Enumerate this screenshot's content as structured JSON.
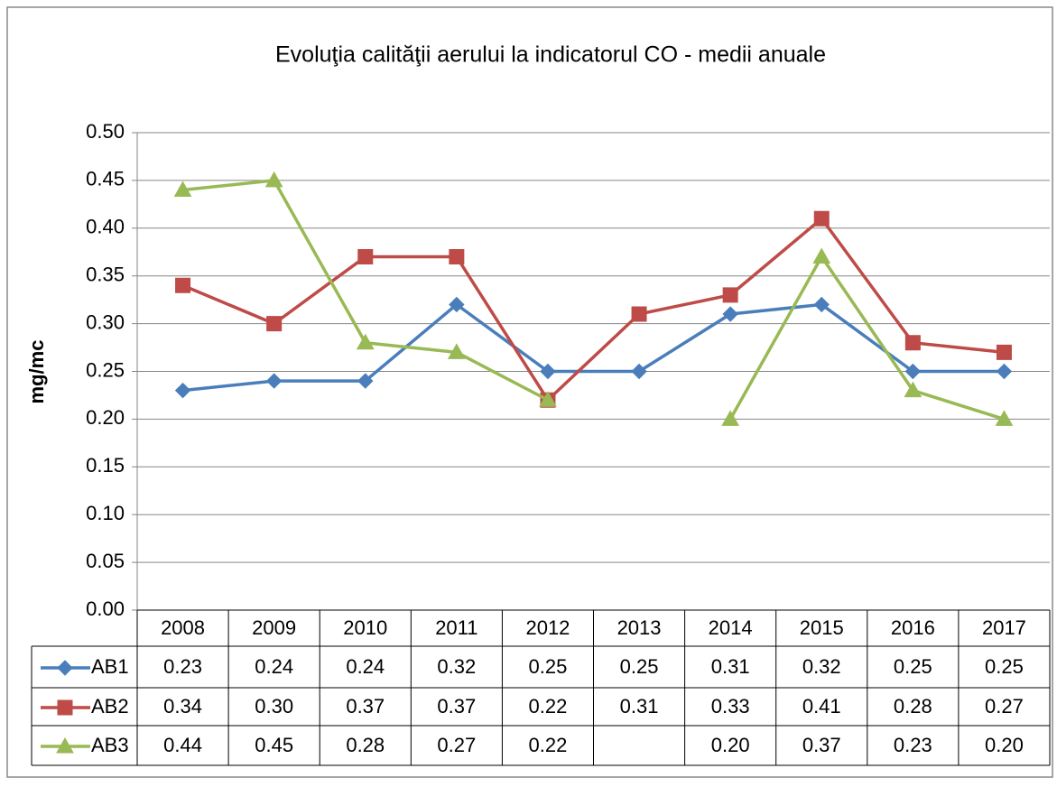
{
  "chart_data": {
    "type": "line",
    "title": "Evoluţia calităţii aerului la indicatorul CO - medii anuale",
    "y_label": "mg/mc",
    "categories": [
      "2008",
      "2009",
      "2010",
      "2011",
      "2012",
      "2013",
      "2014",
      "2015",
      "2016",
      "2017"
    ],
    "series": [
      {
        "name": "AB1",
        "color": "#4a7ebb",
        "marker": "diamond",
        "values": [
          0.23,
          0.24,
          0.24,
          0.32,
          0.25,
          0.25,
          0.31,
          0.32,
          0.25,
          0.25
        ],
        "value_labels": [
          "0.23",
          "0.24",
          "0.24",
          "0.32",
          "0.25",
          "0.25",
          "0.31",
          "0.32",
          "0.25",
          "0.25"
        ]
      },
      {
        "name": "AB2",
        "color": "#be4b48",
        "marker": "square",
        "values": [
          0.34,
          0.3,
          0.37,
          0.37,
          0.22,
          0.31,
          0.33,
          0.41,
          0.28,
          0.27
        ],
        "value_labels": [
          "0.34",
          "0.30",
          "0.37",
          "0.37",
          "0.22",
          "0.31",
          "0.33",
          "0.41",
          "0.28",
          "0.27"
        ]
      },
      {
        "name": "AB3",
        "color": "#98b954",
        "marker": "triangle",
        "values": [
          0.44,
          0.45,
          0.28,
          0.27,
          0.22,
          null,
          0.2,
          0.37,
          0.23,
          0.2
        ],
        "value_labels": [
          "0.44",
          "0.45",
          "0.28",
          "0.27",
          "0.22",
          null,
          "0.20",
          "0.37",
          "0.23",
          "0.20"
        ]
      }
    ],
    "ylim": [
      0,
      0.5
    ],
    "yticks": [
      {
        "value": 0,
        "label": "0.00"
      },
      {
        "value": 0.05,
        "label": "0.05"
      },
      {
        "value": 0.1,
        "label": "0.10"
      },
      {
        "value": 0.15,
        "label": "0.15"
      },
      {
        "value": 0.2,
        "label": "0.20"
      },
      {
        "value": 0.25,
        "label": "0.25"
      },
      {
        "value": 0.3,
        "label": "0.30"
      },
      {
        "value": 0.35,
        "label": "0.35"
      },
      {
        "value": 0.4,
        "label": "0.40"
      },
      {
        "value": 0.45,
        "label": "0.45"
      },
      {
        "value": 0.5,
        "label": "0.50"
      }
    ],
    "grid": true
  }
}
